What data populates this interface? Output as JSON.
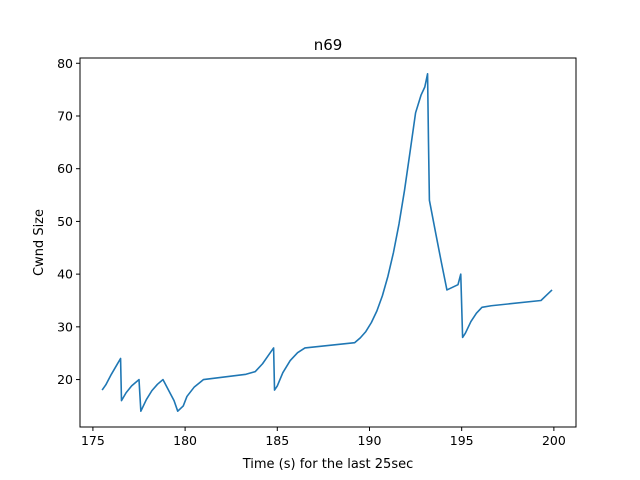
{
  "chart_data": {
    "type": "line",
    "title": "n69",
    "xlabel": "Time (s) for the last 25sec",
    "ylabel": "Cwnd Size",
    "xlim": [
      174.3,
      201.2
    ],
    "ylim": [
      11,
      81
    ],
    "grid": false,
    "x_ticks": [
      175,
      180,
      185,
      190,
      195,
      200
    ],
    "x_tick_labels": [
      "175",
      "180",
      "185",
      "190",
      "195",
      "200"
    ],
    "y_ticks": [
      20,
      30,
      40,
      50,
      60,
      70,
      80
    ],
    "y_tick_labels": [
      "20",
      "30",
      "40",
      "50",
      "60",
      "70",
      "80"
    ],
    "line_color": "#1f77b4",
    "series": [
      {
        "x": [
          175.5,
          175.7,
          176.0,
          176.3,
          176.5,
          176.55,
          176.8,
          177.1,
          177.5,
          177.6,
          177.9,
          178.2,
          178.5,
          178.8,
          179.1,
          179.4,
          179.6,
          179.9,
          180.1,
          180.5,
          181.0,
          183.3,
          183.8,
          184.2,
          184.5,
          184.8,
          184.85,
          185.0,
          185.3,
          185.7,
          186.1,
          186.5,
          189.2,
          189.5,
          189.8,
          190.1,
          190.4,
          190.7,
          191.0,
          191.3,
          191.6,
          191.9,
          192.2,
          192.5,
          192.8,
          193.0,
          193.15,
          193.2,
          193.25,
          193.6,
          193.9,
          194.2,
          194.5,
          194.8,
          194.95,
          195.05,
          195.2,
          195.5,
          195.8,
          196.1,
          196.6,
          199.3,
          199.6,
          199.9
        ],
        "y": [
          18,
          19,
          21,
          22.8,
          24,
          16,
          17.5,
          18.8,
          20,
          14,
          16.2,
          17.9,
          19.1,
          20,
          18,
          16,
          14,
          15,
          16.8,
          18.6,
          20,
          21,
          21.5,
          23,
          24.5,
          26,
          18,
          18.8,
          21.3,
          23.6,
          25.1,
          26,
          27,
          27.9,
          29.1,
          30.8,
          33.0,
          35.9,
          39.6,
          44.1,
          49.5,
          55.9,
          63.2,
          70.6,
          74,
          75.5,
          78,
          65,
          54,
          47.6,
          42.2,
          37,
          37.5,
          38,
          40,
          28,
          28.8,
          31.0,
          32.6,
          33.7,
          34,
          35,
          36,
          37
        ]
      }
    ]
  }
}
